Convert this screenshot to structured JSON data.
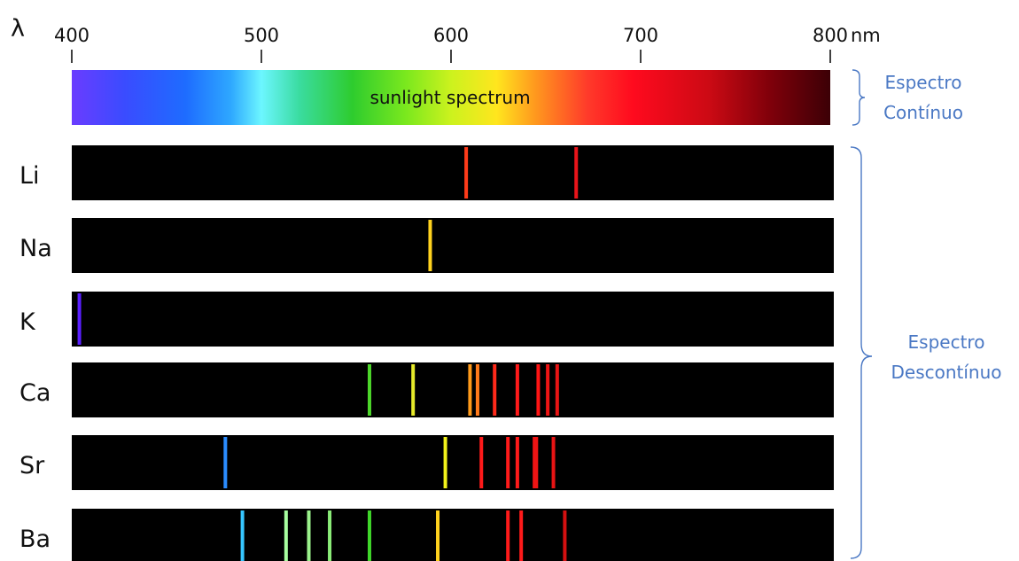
{
  "axis": {
    "symbol": "λ",
    "unit": "nm",
    "min": 400,
    "max": 800,
    "ticks": [
      400,
      500,
      600,
      700,
      800
    ]
  },
  "continuous": {
    "label": "sunlight spectrum",
    "brace_label": [
      "Espectro",
      "Contínuo"
    ]
  },
  "discontinuous": {
    "brace_label": [
      "Espectro",
      "Descontínuo"
    ]
  },
  "colors": {
    "band_background": "#000000",
    "brace": "#4a78c4",
    "text": "#111111"
  },
  "elements": [
    {
      "symbol": "Li",
      "lines": [
        {
          "nm": 608,
          "color": "#ff3b1a"
        },
        {
          "nm": 666,
          "color": "#e8141a"
        }
      ]
    },
    {
      "symbol": "Na",
      "lines": [
        {
          "nm": 589,
          "color": "#ffd21e"
        }
      ]
    },
    {
      "symbol": "K",
      "lines": [
        {
          "nm": 404,
          "color": "#5a1fff"
        }
      ]
    },
    {
      "symbol": "Ca",
      "lines": [
        {
          "nm": 557,
          "color": "#4cd62a"
        },
        {
          "nm": 580,
          "color": "#e6ea2a"
        },
        {
          "nm": 610,
          "color": "#ff9a1a"
        },
        {
          "nm": 614,
          "color": "#ff7a1a"
        },
        {
          "nm": 623,
          "color": "#ff2a1a"
        },
        {
          "nm": 635,
          "color": "#ff1a1a"
        },
        {
          "nm": 646,
          "color": "#ff1414"
        },
        {
          "nm": 651,
          "color": "#f01414"
        },
        {
          "nm": 656,
          "color": "#e81414"
        }
      ]
    },
    {
      "symbol": "Sr",
      "lines": [
        {
          "nm": 481,
          "color": "#2a8cff"
        },
        {
          "nm": 597,
          "color": "#f2f21a"
        },
        {
          "nm": 616,
          "color": "#ff1a1a"
        },
        {
          "nm": 630,
          "color": "#ff1a1a"
        },
        {
          "nm": 635,
          "color": "#ff1a1a"
        },
        {
          "nm": 644,
          "color": "#f01414"
        },
        {
          "nm": 645,
          "color": "#f01414"
        },
        {
          "nm": 654,
          "color": "#e81414"
        }
      ]
    },
    {
      "symbol": "Ba",
      "lines": [
        {
          "nm": 490,
          "color": "#36c6ff"
        },
        {
          "nm": 513,
          "color": "#a8ffa0"
        },
        {
          "nm": 525,
          "color": "#9bf28c"
        },
        {
          "nm": 536,
          "color": "#8aec78"
        },
        {
          "nm": 557,
          "color": "#3fd62a"
        },
        {
          "nm": 593,
          "color": "#ffd21e"
        },
        {
          "nm": 630,
          "color": "#ff1a1a"
        },
        {
          "nm": 637,
          "color": "#ff1a1a"
        },
        {
          "nm": 660,
          "color": "#d41010"
        }
      ]
    }
  ]
}
